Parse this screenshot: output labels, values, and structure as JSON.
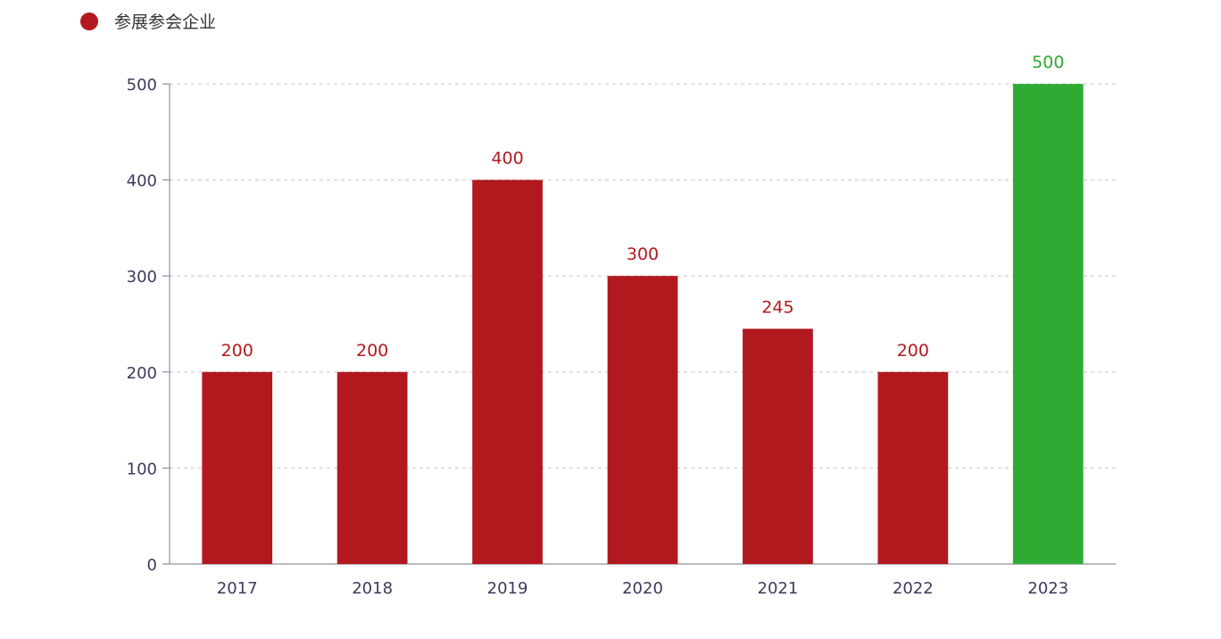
{
  "chart_data": {
    "type": "bar",
    "categories": [
      "2017",
      "2018",
      "2019",
      "2020",
      "2021",
      "2022",
      "2023"
    ],
    "series": [
      {
        "name": "参展参会企业",
        "values": [
          200,
          200,
          400,
          300,
          245,
          200,
          500
        ]
      }
    ],
    "yticks": [
      "0",
      "100",
      "200",
      "300",
      "400",
      "500"
    ],
    "ylim": [
      0,
      500
    ],
    "grid": true,
    "legend_position": "top-left",
    "colors": {
      "bar": "#b1191e",
      "highlight_bar": "#2eab32",
      "highlight_label": "#2eab32",
      "label": "#b1191e",
      "legend_marker": "#b1191e",
      "axis": "#777a90",
      "grid": "#c6c6d0"
    },
    "highlight_index": 6
  }
}
